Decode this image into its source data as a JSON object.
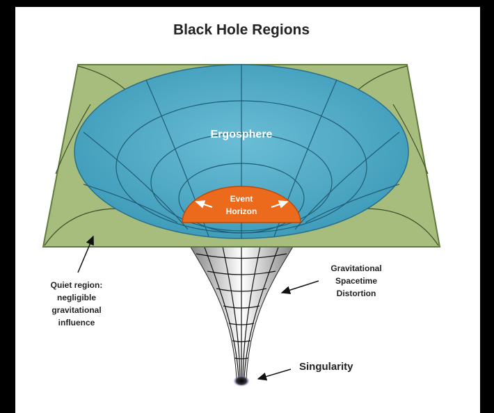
{
  "title": "Black Hole Regions",
  "labels": {
    "ergosphere": "Ergosphere",
    "event_horizon": [
      "Event",
      "Horizon"
    ],
    "quiet_region": [
      "Quiet region:",
      "negligible",
      "gravitational",
      "influence"
    ],
    "distortion": [
      "Gravitational",
      "Spacetime",
      "Distortion"
    ],
    "singularity": "Singularity"
  }
}
